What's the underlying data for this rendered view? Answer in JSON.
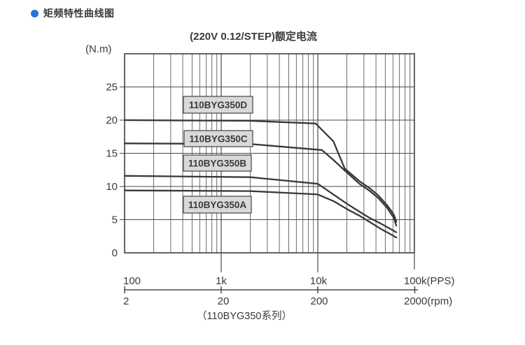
{
  "page": {
    "background": "#ffffff"
  },
  "header": {
    "title": "矩频特性曲线图",
    "bullet_color": "#2478dd"
  },
  "chart_data": {
    "type": "line",
    "title": "(220V 0.12/STEP)额定电流",
    "caption": "（110BYG350系列）",
    "x_axis": {
      "scale": "log",
      "unit_primary": "PPS",
      "unit_secondary": "rpm",
      "range_pps": [
        100,
        100000
      ],
      "tick_labels_pps": [
        "100",
        "1k",
        "10k",
        "100k(PPS)"
      ],
      "tick_labels_rpm": [
        "2",
        "20",
        "200",
        "2000(rpm)"
      ]
    },
    "y_axis": {
      "label": "(N.m)",
      "range": [
        0,
        30
      ],
      "tick_values": [
        0,
        5,
        10,
        15,
        20,
        25
      ],
      "tick_labels": [
        "0",
        "5",
        "10",
        "15",
        "20",
        "25"
      ]
    },
    "grid": {
      "x": "log minor lines each decade",
      "y": "major line every 5 N.m",
      "visible": true
    },
    "legend_position": "inline-boxes",
    "series": [
      {
        "name": "110BYG350D",
        "points": [
          [
            100,
            20
          ],
          [
            2000,
            19.9
          ],
          [
            9500,
            19.5
          ],
          [
            14500,
            16.8
          ],
          [
            19000,
            12.7
          ],
          [
            27000,
            10.8
          ],
          [
            34000,
            9.8
          ],
          [
            42000,
            8.7
          ],
          [
            52000,
            7.2
          ],
          [
            61000,
            5.8
          ],
          [
            65000,
            4.7
          ]
        ]
      },
      {
        "name": "110BYG350C",
        "points": [
          [
            100,
            16.5
          ],
          [
            2000,
            16.4
          ],
          [
            11000,
            15.5
          ],
          [
            14500,
            14.0
          ],
          [
            19000,
            12.4
          ],
          [
            27000,
            10.4
          ],
          [
            34000,
            9.4
          ],
          [
            42000,
            8.3
          ],
          [
            52000,
            6.8
          ],
          [
            61000,
            5.3
          ],
          [
            65000,
            4.1
          ]
        ]
      },
      {
        "name": "110BYG350B",
        "points": [
          [
            100,
            11.6
          ],
          [
            2000,
            11.4
          ],
          [
            10000,
            10.4
          ],
          [
            14500,
            8.8
          ],
          [
            20000,
            7.4
          ],
          [
            27000,
            6.2
          ],
          [
            34000,
            5.3
          ],
          [
            45000,
            4.4
          ],
          [
            55000,
            3.7
          ],
          [
            65000,
            3.1
          ]
        ]
      },
      {
        "name": "110BYG350A",
        "points": [
          [
            100,
            9.4
          ],
          [
            2000,
            9.3
          ],
          [
            10000,
            8.8
          ],
          [
            14500,
            7.8
          ],
          [
            20000,
            6.6
          ],
          [
            27000,
            5.6
          ],
          [
            34000,
            4.7
          ],
          [
            45000,
            3.6
          ],
          [
            55000,
            2.9
          ],
          [
            65000,
            2.3
          ]
        ]
      }
    ],
    "colors": {
      "curve": "#383838",
      "grid_minor": "#6b6b6b",
      "grid_major": "#4a4a4a",
      "border": "#3f3f3f",
      "text": "#3a3a3a",
      "box_fill": "#d9d9d9",
      "box_border": "#4f4f4f",
      "axis": "#4a4a4a"
    }
  }
}
